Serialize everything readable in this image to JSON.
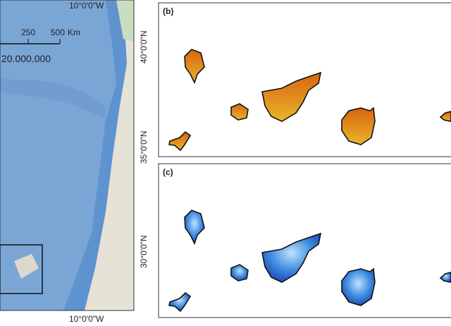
{
  "map": {
    "lon_label_top": "10°0'0\"W",
    "lon_label_bottom": "10°0'0\"W",
    "lat_labels": [
      "40°0'0\"N",
      "35°0'0\"N",
      "30°0'0\"N"
    ],
    "scale_bar": {
      "ticks": [
        "250",
        "500"
      ],
      "unit": "Km",
      "ratio": "20.000.000"
    }
  },
  "panels": [
    {
      "label": "(b)"
    },
    {
      "label": "(c)"
    }
  ]
}
